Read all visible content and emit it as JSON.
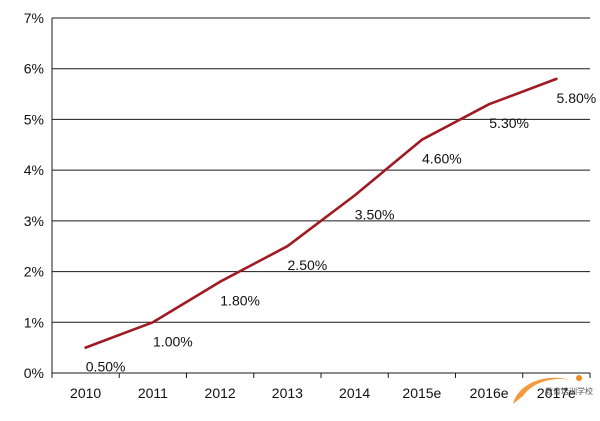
{
  "chart_data": {
    "type": "line",
    "title": "",
    "xlabel": "",
    "ylabel": "",
    "categories": [
      "2010",
      "2011",
      "2012",
      "2013",
      "2014",
      "2015e",
      "2016e",
      "2017e"
    ],
    "series": [
      {
        "values": [
          0.5,
          1.0,
          1.8,
          2.5,
          3.5,
          4.6,
          5.3,
          5.8
        ],
        "color": "#a01a22"
      }
    ],
    "data_labels": [
      "0.50%",
      "1.00%",
      "1.80%",
      "2.50%",
      "3.50%",
      "4.60%",
      "5.30%",
      "5.80%"
    ],
    "ylim": [
      0,
      7
    ],
    "yticks": [
      0,
      1,
      2,
      3,
      4,
      5,
      6,
      7
    ],
    "ytick_labels": [
      "0%",
      "1%",
      "2%",
      "3%",
      "4%",
      "5%",
      "6%",
      "7%"
    ],
    "grid": true,
    "legend": "none"
  },
  "watermark": {
    "text": "教育培训学校",
    "color": "#f08a1c"
  }
}
